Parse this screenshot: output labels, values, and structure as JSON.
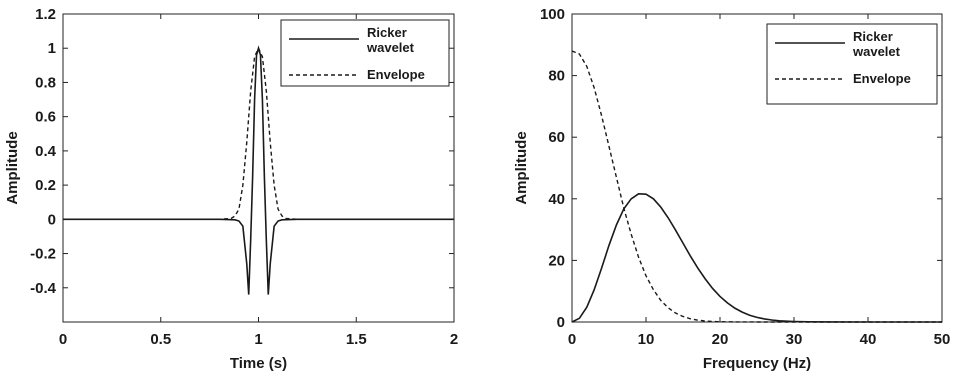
{
  "chart_data": [
    {
      "type": "line",
      "xlabel": "Time (s)",
      "ylabel": "Amplitude",
      "xlim": [
        0,
        2
      ],
      "ylim": [
        -0.6,
        1.2
      ],
      "xticks": [
        0,
        0.5,
        1,
        1.5,
        2
      ],
      "xtick_labels": [
        "0",
        "0.5",
        "1",
        "1.5",
        "2"
      ],
      "yticks": [
        -0.4,
        -0.2,
        0,
        0.2,
        0.4,
        0.6,
        0.8,
        1,
        1.2
      ],
      "ytick_labels": [
        "-0.4",
        "-0.2",
        "0",
        "0.2",
        "0.4",
        "0.6",
        "0.8",
        "1",
        "1.2"
      ],
      "grid": false,
      "legend_position": "top-right",
      "series": [
        {
          "name": "Ricker wavelet",
          "name_lines": [
            "Ricker",
            "wavelet"
          ],
          "style": "solid",
          "x": [
            0,
            0.8,
            0.88,
            0.9,
            0.92,
            0.94,
            0.95,
            0.96,
            0.97,
            0.98,
            0.99,
            1.0,
            1.01,
            1.02,
            1.03,
            1.04,
            1.05,
            1.06,
            1.08,
            1.1,
            1.12,
            1.2,
            2
          ],
          "y": [
            0,
            0,
            -0.003,
            -0.01,
            -0.04,
            -0.26,
            -0.44,
            -0.12,
            0.25,
            0.7,
            0.96,
            1.0,
            0.96,
            0.7,
            0.25,
            -0.12,
            -0.44,
            -0.26,
            -0.04,
            -0.01,
            -0.003,
            0,
            0
          ]
        },
        {
          "name": "Envelope",
          "name_lines": [
            "Envelope"
          ],
          "style": "dashed",
          "x": [
            0,
            0.8,
            0.86,
            0.88,
            0.9,
            0.92,
            0.94,
            0.96,
            0.98,
            1.0,
            1.02,
            1.04,
            1.06,
            1.08,
            1.1,
            1.12,
            1.14,
            1.2,
            2
          ],
          "y": [
            0,
            0,
            0.005,
            0.02,
            0.06,
            0.2,
            0.45,
            0.75,
            0.95,
            1.0,
            0.95,
            0.75,
            0.45,
            0.2,
            0.06,
            0.02,
            0.005,
            0,
            0
          ]
        }
      ]
    },
    {
      "type": "line",
      "xlabel": "Frequency (Hz)",
      "ylabel": "Amplitude",
      "xlim": [
        0,
        50
      ],
      "ylim": [
        0,
        100
      ],
      "xticks": [
        0,
        10,
        20,
        30,
        40,
        50
      ],
      "xtick_labels": [
        "0",
        "10",
        "20",
        "30",
        "40",
        "50"
      ],
      "yticks": [
        0,
        20,
        40,
        60,
        80,
        100
      ],
      "ytick_labels": [
        "0",
        "20",
        "40",
        "60",
        "80",
        "100"
      ],
      "grid": false,
      "legend_position": "top-right",
      "series": [
        {
          "name": "Ricker wavelet",
          "name_lines": [
            "Ricker",
            "wavelet"
          ],
          "style": "solid",
          "x": [
            0,
            1,
            2,
            3,
            4,
            5,
            6,
            7,
            8,
            9,
            10,
            11,
            12,
            13,
            14,
            15,
            16,
            17,
            18,
            19,
            20,
            21,
            22,
            23,
            24,
            25,
            26,
            27,
            28,
            29,
            30,
            32,
            35,
            40,
            50
          ],
          "y": [
            0,
            1.2,
            4.8,
            10.5,
            17.5,
            24.9,
            31.5,
            36.7,
            40.0,
            41.6,
            41.5,
            40.0,
            37.3,
            33.8,
            29.8,
            25.6,
            21.4,
            17.5,
            14.0,
            10.9,
            8.3,
            6.2,
            4.5,
            3.2,
            2.2,
            1.5,
            1.0,
            0.65,
            0.4,
            0.25,
            0.15,
            0.05,
            0.01,
            0,
            0
          ]
        },
        {
          "name": "Envelope",
          "name_lines": [
            "Envelope"
          ],
          "style": "dashed",
          "x": [
            0,
            1,
            2,
            3,
            4,
            5,
            6,
            7,
            8,
            9,
            10,
            11,
            12,
            13,
            14,
            15,
            16,
            17,
            18,
            19,
            20,
            22,
            25,
            30,
            50
          ],
          "y": [
            88,
            87,
            83,
            76,
            67,
            57,
            47,
            37,
            28.5,
            21,
            15,
            10.5,
            7,
            4.6,
            2.9,
            1.8,
            1.05,
            0.6,
            0.33,
            0.18,
            0.1,
            0.03,
            0,
            0,
            0
          ]
        }
      ]
    }
  ]
}
